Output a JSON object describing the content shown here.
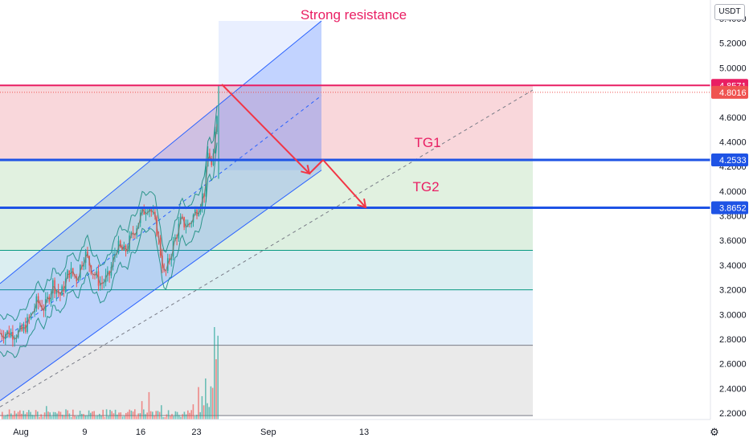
{
  "currency": "USDT",
  "settings_icon": "gear-icon",
  "colors": {
    "candle_up": "#26a69a",
    "candle_down": "#ef5350",
    "resistance": "#e91e63",
    "support": "#1e53e5",
    "annotation_text": "#e91e63",
    "arrow": "#f23645",
    "channel": "#2962ff"
  },
  "chart_data": {
    "type": "candlestick",
    "title": "",
    "xlabel": "",
    "ylabel": "",
    "x_ticks": [
      "Aug",
      "9",
      "16",
      "23",
      "Sep",
      "13"
    ],
    "y_ticks": [
      "2.2000",
      "2.4000",
      "2.6000",
      "2.8000",
      "3.0000",
      "3.2000",
      "3.4000",
      "3.6000",
      "3.8000",
      "4.0000",
      "4.2000",
      "4.4000",
      "4.6000",
      "4.8000",
      "5.0000",
      "5.2000",
      "5.4000"
    ],
    "ylim": [
      2.15,
      5.45
    ],
    "xlim_days_labeled": {
      "Aug": 1,
      "9": 9,
      "16": 16,
      "23": 23,
      "Sep": 32,
      "13": 44
    },
    "grid": false,
    "legend": "none",
    "price_labels": [
      {
        "value": "4.8571",
        "color": "#e91e63"
      },
      {
        "value": "4.8016",
        "color": "#ef5350"
      },
      {
        "value": "4.2533",
        "color": "#1e53e5"
      },
      {
        "value": "3.8652",
        "color": "#1e53e5"
      }
    ],
    "levels": [
      {
        "value": 4.8571,
        "kind": "resistance"
      },
      {
        "value": 4.2533,
        "kind": "target"
      },
      {
        "value": 3.8652,
        "kind": "target"
      }
    ],
    "fib_levels": [
      4.8571,
      4.2533,
      3.8652,
      3.52,
      3.2,
      2.75,
      2.18
    ],
    "annotations": [
      {
        "text": "Strong resistance",
        "color": "#e91e63"
      },
      {
        "text": "TG1",
        "color": "#e91e63"
      },
      {
        "text": "TG2",
        "color": "#e91e63"
      }
    ],
    "price_path": [
      [
        1,
        2.85
      ],
      [
        2,
        2.95
      ],
      [
        3,
        3.1
      ],
      [
        4,
        3.05
      ],
      [
        5,
        3.25
      ],
      [
        6,
        3.15
      ],
      [
        7,
        3.35
      ],
      [
        8,
        3.3
      ],
      [
        9,
        3.5
      ],
      [
        10,
        3.35
      ],
      [
        11,
        3.25
      ],
      [
        12,
        3.3
      ],
      [
        13,
        3.55
      ],
      [
        14,
        3.5
      ],
      [
        15,
        3.65
      ],
      [
        16,
        3.8
      ],
      [
        17,
        3.9
      ],
      [
        18,
        3.7
      ],
      [
        19,
        3.3
      ],
      [
        20,
        3.55
      ],
      [
        21,
        3.75
      ],
      [
        22,
        3.72
      ],
      [
        23,
        3.85
      ],
      [
        24,
        4.0
      ],
      [
        24.5,
        4.35
      ],
      [
        25,
        4.15
      ],
      [
        25.5,
        4.6
      ],
      [
        26,
        4.857
      ],
      [
        26.4,
        4.2
      ],
      [
        26.8,
        4.3
      ]
    ]
  }
}
